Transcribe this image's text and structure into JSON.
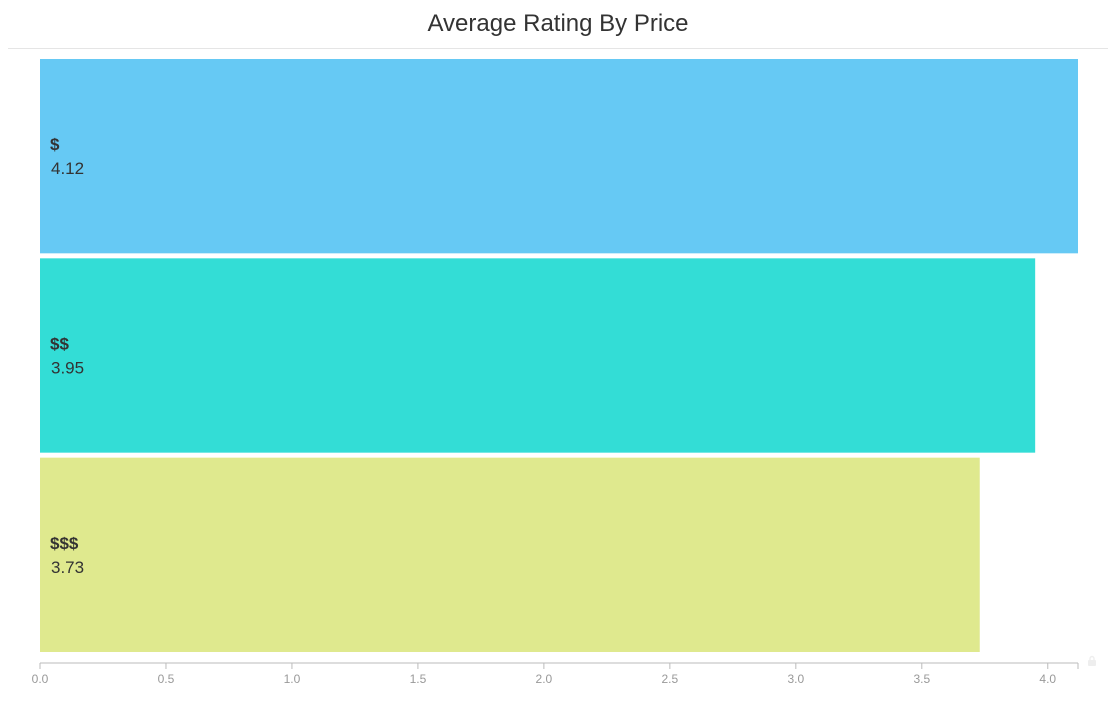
{
  "chart_data": {
    "type": "bar",
    "orientation": "horizontal",
    "title": "Average Rating By Price",
    "categories": [
      "$",
      "$$",
      "$$$"
    ],
    "values": [
      4.12,
      3.95,
      3.73
    ],
    "value_labels": [
      "4.12",
      "3.95",
      "3.73"
    ],
    "colors": [
      "#66c9f4",
      "#33ddd6",
      "#dfe98e"
    ],
    "xlim": [
      0,
      4.12
    ],
    "x_ticks": [
      0.0,
      0.5,
      1.0,
      1.5,
      2.0,
      2.5,
      3.0,
      3.5,
      4.0
    ],
    "x_tick_labels": [
      "0.0",
      "0.5",
      "1.0",
      "1.5",
      "2.0",
      "2.5",
      "3.0",
      "3.5",
      "4.0"
    ],
    "grid": false,
    "legend": "none"
  },
  "icons": {
    "corner": "lock-icon"
  }
}
